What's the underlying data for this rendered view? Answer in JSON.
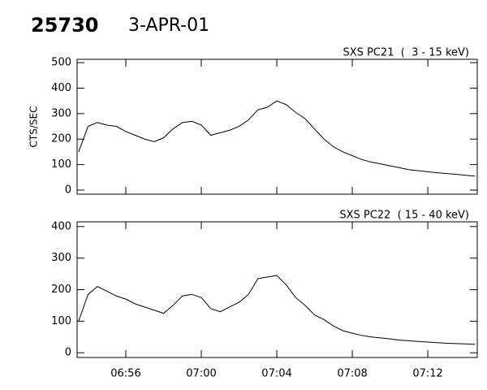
{
  "header": {
    "id": "25730",
    "date": "3-APR-01"
  },
  "chart_data": [
    {
      "type": "line",
      "subtitle": "SXS PC21  (  3 - 15 keV)",
      "y_label": "CTS/SEC",
      "x": [
        53.5,
        54,
        54.5,
        55,
        55.5,
        56,
        56.5,
        57,
        57.5,
        58,
        58.5,
        59,
        59.5,
        60,
        60.5,
        61,
        61.5,
        62,
        62.5,
        63,
        63.5,
        64,
        64.5,
        65,
        65.5,
        66,
        66.5,
        67,
        67.5,
        68,
        68.5,
        69,
        69.5,
        70,
        70.5,
        71,
        71.5,
        72,
        72.5,
        73,
        73.5,
        74,
        74.5
      ],
      "series": [
        {
          "color": "#000000",
          "values": [
            150,
            250,
            265,
            255,
            250,
            230,
            215,
            200,
            190,
            205,
            240,
            265,
            270,
            255,
            215,
            225,
            235,
            250,
            275,
            315,
            325,
            350,
            335,
            305,
            280,
            240,
            200,
            170,
            150,
            135,
            120,
            110,
            103,
            95,
            88,
            80,
            76,
            72,
            68,
            65,
            62,
            58,
            55
          ]
        }
      ],
      "xlim": [
        53.42,
        74.62
      ],
      "ylim": [
        -16,
        513
      ],
      "xticks": [
        56,
        60,
        64,
        68,
        72
      ],
      "yticks": [
        0,
        100,
        200,
        300,
        400,
        500
      ]
    },
    {
      "type": "line",
      "subtitle": "SXS PC22  ( 15 - 40 keV)",
      "x": [
        53.5,
        54,
        54.5,
        55,
        55.5,
        56,
        56.5,
        57,
        57.5,
        58,
        58.5,
        59,
        59.5,
        60,
        60.5,
        61,
        61.5,
        62,
        62.5,
        63,
        63.5,
        64,
        64.5,
        65,
        65.5,
        66,
        66.5,
        67,
        67.5,
        68,
        68.5,
        69,
        69.5,
        70,
        70.5,
        71,
        71.5,
        72,
        72.5,
        73,
        73.5,
        74,
        74.5
      ],
      "series": [
        {
          "color": "#000000",
          "values": [
            100,
            185,
            210,
            195,
            180,
            170,
            155,
            145,
            135,
            125,
            150,
            180,
            185,
            175,
            140,
            130,
            145,
            160,
            185,
            235,
            240,
            245,
            215,
            175,
            150,
            120,
            105,
            85,
            70,
            62,
            55,
            50,
            47,
            44,
            40,
            38,
            36,
            34,
            32,
            30,
            29,
            28,
            27
          ]
        }
      ],
      "xlim": [
        53.42,
        74.62
      ],
      "ylim": [
        -15,
        415
      ],
      "xticks": [
        {
          "value": 56,
          "label": "06:56"
        },
        {
          "value": 60,
          "label": "07:00"
        },
        {
          "value": 64,
          "label": "07:04"
        },
        {
          "value": 68,
          "label": "07:08"
        },
        {
          "value": 72,
          "label": "07:12"
        }
      ],
      "yticks": [
        0,
        100,
        200,
        300,
        400
      ]
    }
  ]
}
